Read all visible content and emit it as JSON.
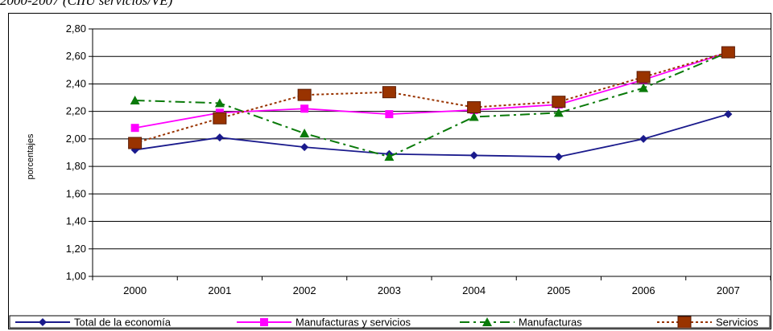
{
  "caption": "2000-2007 (CIIU servicios/VE)",
  "chart_data": {
    "type": "line",
    "title": "",
    "xlabel": "",
    "ylabel": "porcentajes",
    "ylim": [
      1.0,
      2.8
    ],
    "ytick_step": 0.2,
    "ytick_labels": [
      "1,00",
      "1,20",
      "1,40",
      "1,60",
      "1,80",
      "2,00",
      "2,20",
      "2,40",
      "2,60",
      "2,80"
    ],
    "grid": "horizontal",
    "legend": "bottom",
    "categories": [
      "2000",
      "2001",
      "2002",
      "2003",
      "2004",
      "2005",
      "2006",
      "2007"
    ],
    "series": [
      {
        "name": "Total de la economía",
        "color": "#1a1a8c",
        "marker": "diamond",
        "dash": "solid",
        "values": [
          1.92,
          2.01,
          1.94,
          1.89,
          1.88,
          1.87,
          2.0,
          2.18
        ]
      },
      {
        "name": "Manufacturas y servicios",
        "color": "#ff00ff",
        "marker": "square",
        "dash": "solid",
        "values": [
          2.08,
          2.19,
          2.22,
          2.18,
          2.21,
          2.25,
          2.43,
          2.63
        ]
      },
      {
        "name": "Manufacturas",
        "color": "#0a7a0a",
        "marker": "triangle",
        "dash": "dashdot",
        "values": [
          2.28,
          2.26,
          2.04,
          1.87,
          2.16,
          2.19,
          2.37,
          2.63
        ]
      },
      {
        "name": "Servicios",
        "color": "#993300",
        "marker": "bigsquare",
        "dash": "dotted",
        "values": [
          1.97,
          2.15,
          2.32,
          2.34,
          2.23,
          2.27,
          2.45,
          2.63
        ]
      }
    ]
  }
}
